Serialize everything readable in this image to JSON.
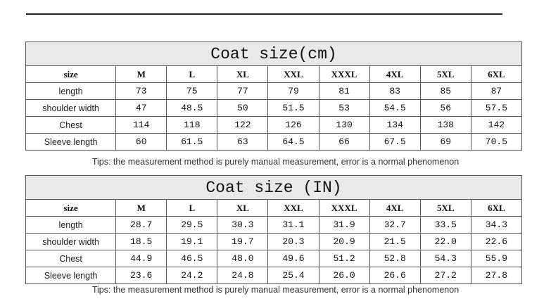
{
  "tables": [
    {
      "title": "Coat size(cm)",
      "header": [
        "size",
        "M",
        "L",
        "XL",
        "XXL",
        "XXXL",
        "4XL",
        "5XL",
        "6XL"
      ],
      "rows": [
        [
          "length",
          "73",
          "75",
          "77",
          "79",
          "81",
          "83",
          "85",
          "87"
        ],
        [
          "shoulder width",
          "47",
          "48.5",
          "50",
          "51.5",
          "53",
          "54.5",
          "56",
          "57.5"
        ],
        [
          "Chest",
          "114",
          "118",
          "122",
          "126",
          "130",
          "134",
          "138",
          "142"
        ],
        [
          "Sleeve length",
          "60",
          "61.5",
          "63",
          "64.5",
          "66",
          "67.5",
          "69",
          "70.5"
        ]
      ],
      "tip": "Tips: the measurement method is purely manual measurement, error is a normal phenomenon"
    },
    {
      "title": "Coat size (IN)",
      "header": [
        "size",
        "M",
        "L",
        "XL",
        "XXL",
        "XXXL",
        "4XL",
        "5XL",
        "6XL"
      ],
      "rows": [
        [
          "length",
          "28.7",
          "29.5",
          "30.3",
          "31.1",
          "31.9",
          "32.7",
          "33.5",
          "34.3"
        ],
        [
          "shoulder width",
          "18.5",
          "19.1",
          "19.7",
          "20.3",
          "20.9",
          "21.5",
          "22.0",
          "22.6"
        ],
        [
          "Chest",
          "44.9",
          "46.5",
          "48.0",
          "49.6",
          "51.2",
          "52.8",
          "54.3",
          "55.9"
        ],
        [
          "Sleeve length",
          "23.6",
          "24.2",
          "24.8",
          "25.4",
          "26.0",
          "26.6",
          "27.2",
          "27.8"
        ]
      ],
      "tip": "Tips: the measurement method is purely manual measurement, error is a normal phenomenon"
    }
  ]
}
